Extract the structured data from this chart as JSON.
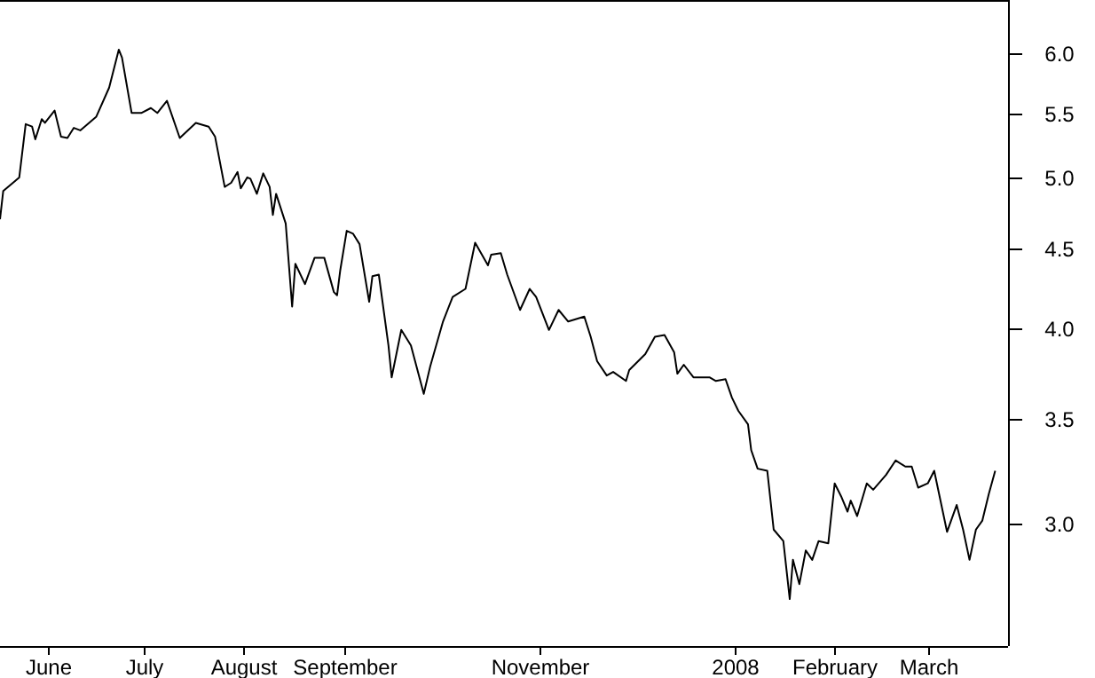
{
  "chart_data": {
    "type": "line",
    "log": true,
    "grid": false,
    "marker": "none",
    "line_style": "solid",
    "xlim": [
      "2007-05-17",
      "2008-03-26"
    ],
    "xticks": [
      {
        "value": "2007-06-01",
        "label": "June"
      },
      {
        "value": "2007-07-01",
        "label": "July"
      },
      {
        "value": "2007-08-01",
        "label": "August"
      },
      {
        "value": "2007-09-01",
        "label": "September"
      },
      {
        "value": "2007-11-01",
        "label": "November"
      },
      {
        "value": "2008-01-01",
        "label": "2008"
      },
      {
        "value": "2008-02-01",
        "label": "February"
      },
      {
        "value": "2008-03-01",
        "label": "March"
      }
    ],
    "ylim": [
      2.5,
      6.5
    ],
    "yticks": [
      {
        "value": 3.0,
        "label": "3.0"
      },
      {
        "value": 3.5,
        "label": "3.5"
      },
      {
        "value": 4.0,
        "label": "4.0"
      },
      {
        "value": 4.5,
        "label": "4.5"
      },
      {
        "value": 5.0,
        "label": "5.0"
      },
      {
        "value": 5.5,
        "label": "5.5"
      },
      {
        "value": 6.0,
        "label": "6.0"
      }
    ],
    "series": [
      {
        "color": "#000000",
        "x": [
          "2007-05-17",
          "2007-05-18",
          "2007-05-23",
          "2007-05-25",
          "2007-05-27",
          "2007-05-28",
          "2007-05-30",
          "2007-05-31",
          "2007-06-03",
          "2007-06-05",
          "2007-06-07",
          "2007-06-09",
          "2007-06-11",
          "2007-06-16",
          "2007-06-20",
          "2007-06-23",
          "2007-06-24",
          "2007-06-27",
          "2007-06-30",
          "2007-07-03",
          "2007-07-05",
          "2007-07-08",
          "2007-07-12",
          "2007-07-17",
          "2007-07-21",
          "2007-07-23",
          "2007-07-26",
          "2007-07-28",
          "2007-07-30",
          "2007-07-31",
          "2007-08-02",
          "2007-08-03",
          "2007-08-05",
          "2007-08-07",
          "2007-08-09",
          "2007-08-10",
          "2007-08-11",
          "2007-08-14",
          "2007-08-16",
          "2007-08-17",
          "2007-08-20",
          "2007-08-23",
          "2007-08-26",
          "2007-08-29",
          "2007-08-30",
          "2007-08-31",
          "2007-09-02",
          "2007-09-04",
          "2007-09-06",
          "2007-09-09",
          "2007-09-10",
          "2007-09-12",
          "2007-09-15",
          "2007-09-16",
          "2007-09-19",
          "2007-09-22",
          "2007-09-26",
          "2007-09-28",
          "2007-10-02",
          "2007-10-05",
          "2007-10-09",
          "2007-10-12",
          "2007-10-16",
          "2007-10-17",
          "2007-10-20",
          "2007-10-22",
          "2007-10-26",
          "2007-10-29",
          "2007-10-31",
          "2007-11-04",
          "2007-11-07",
          "2007-11-10",
          "2007-11-15",
          "2007-11-17",
          "2007-11-19",
          "2007-11-22",
          "2007-11-24",
          "2007-11-28",
          "2007-11-29",
          "2007-12-04",
          "2007-12-07",
          "2007-12-10",
          "2007-12-13",
          "2007-12-14",
          "2007-12-16",
          "2007-12-19",
          "2007-12-24",
          "2007-12-26",
          "2007-12-29",
          "2007-12-31",
          "2008-01-02",
          "2008-01-05",
          "2008-01-06",
          "2008-01-08",
          "2008-01-11",
          "2008-01-13",
          "2008-01-16",
          "2008-01-18",
          "2008-01-19",
          "2008-01-21",
          "2008-01-23",
          "2008-01-25",
          "2008-01-27",
          "2008-01-30",
          "2008-02-01",
          "2008-02-03",
          "2008-02-05",
          "2008-02-06",
          "2008-02-08",
          "2008-02-11",
          "2008-02-13",
          "2008-02-17",
          "2008-02-20",
          "2008-02-23",
          "2008-02-25",
          "2008-02-27",
          "2008-03-01",
          "2008-03-03",
          "2008-03-07",
          "2008-03-10",
          "2008-03-12",
          "2008-03-14",
          "2008-03-16",
          "2008-03-18",
          "2008-03-20",
          "2008-03-22"
        ],
        "values": [
          4.7,
          4.9,
          5.0,
          5.41,
          5.39,
          5.29,
          5.45,
          5.42,
          5.52,
          5.31,
          5.3,
          5.38,
          5.36,
          5.47,
          5.71,
          6.04,
          5.97,
          5.5,
          5.5,
          5.54,
          5.5,
          5.6,
          5.3,
          5.42,
          5.39,
          5.31,
          4.93,
          4.96,
          5.04,
          4.92,
          5.0,
          4.99,
          4.88,
          5.03,
          4.93,
          4.73,
          4.88,
          4.67,
          4.13,
          4.4,
          4.27,
          4.44,
          4.44,
          4.22,
          4.2,
          4.36,
          4.62,
          4.6,
          4.53,
          4.16,
          4.32,
          4.33,
          3.9,
          3.72,
          3.99,
          3.9,
          3.63,
          3.78,
          4.04,
          4.19,
          4.24,
          4.54,
          4.39,
          4.46,
          4.47,
          4.33,
          4.11,
          4.24,
          4.19,
          3.99,
          4.11,
          4.04,
          4.07,
          3.95,
          3.81,
          3.73,
          3.75,
          3.7,
          3.76,
          3.85,
          3.95,
          3.96,
          3.86,
          3.74,
          3.79,
          3.72,
          3.72,
          3.7,
          3.71,
          3.61,
          3.54,
          3.47,
          3.34,
          3.25,
          3.24,
          2.97,
          2.92,
          2.68,
          2.84,
          2.74,
          2.88,
          2.84,
          2.92,
          2.91,
          3.18,
          3.12,
          3.05,
          3.1,
          3.03,
          3.18,
          3.15,
          3.22,
          3.29,
          3.26,
          3.26,
          3.16,
          3.18,
          3.24,
          2.96,
          3.08,
          2.97,
          2.84,
          2.97,
          3.01,
          3.13,
          3.24
        ]
      }
    ]
  }
}
